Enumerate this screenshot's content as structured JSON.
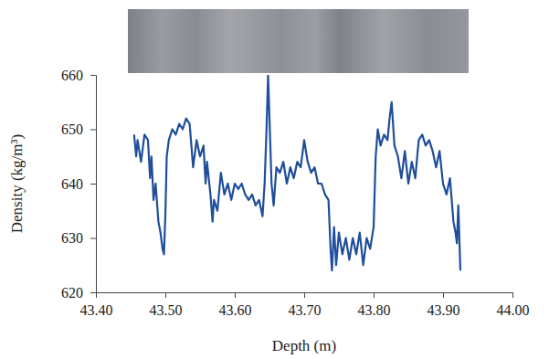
{
  "chart_data": {
    "type": "line",
    "xlabel": "Depth (m)",
    "ylabel": "Density (kg/m³)",
    "color": "#1f4e9a",
    "xlim": [
      43.4,
      44.0
    ],
    "xticks": [
      {
        "value": 43.4,
        "label": "43.40"
      },
      {
        "value": 43.5,
        "label": "43.50"
      },
      {
        "value": 43.6,
        "label": "43.60"
      },
      {
        "value": 43.7,
        "label": "43.70"
      },
      {
        "value": 43.8,
        "label": "43.80"
      },
      {
        "value": 43.9,
        "label": "43.90"
      },
      {
        "value": 44.0,
        "label": "44.00"
      }
    ],
    "ylim": [
      620,
      660
    ],
    "yticks": [
      620,
      630,
      640,
      650,
      660
    ],
    "x": [
      43.455,
      43.458,
      43.46,
      43.465,
      43.47,
      43.475,
      43.478,
      43.48,
      43.483,
      43.486,
      43.49,
      43.493,
      43.496,
      43.498,
      43.5,
      43.502,
      43.505,
      43.51,
      43.515,
      43.52,
      43.525,
      43.53,
      43.535,
      43.54,
      43.545,
      43.55,
      43.555,
      43.558,
      43.56,
      43.565,
      43.568,
      43.57,
      43.575,
      43.58,
      43.585,
      43.59,
      43.595,
      43.6,
      43.605,
      43.61,
      43.615,
      43.62,
      43.625,
      43.63,
      43.635,
      43.64,
      43.643,
      43.646,
      43.648,
      43.65,
      43.653,
      43.656,
      43.66,
      43.665,
      43.67,
      43.675,
      43.68,
      43.685,
      43.69,
      43.695,
      43.7,
      43.705,
      43.71,
      43.715,
      43.72,
      43.725,
      43.73,
      43.735,
      43.738,
      43.74,
      43.743,
      43.746,
      43.75,
      43.755,
      43.76,
      43.765,
      43.77,
      43.775,
      43.78,
      43.785,
      43.79,
      43.795,
      43.8,
      43.803,
      43.806,
      43.81,
      43.815,
      43.82,
      43.823,
      43.826,
      43.83,
      43.835,
      43.84,
      43.845,
      43.85,
      43.855,
      43.86,
      43.865,
      43.87,
      43.875,
      43.88,
      43.885,
      43.89,
      43.895,
      43.9,
      43.905,
      43.91,
      43.915,
      43.918,
      43.92,
      43.922,
      43.925
    ],
    "values": [
      649,
      645,
      648,
      644,
      649,
      648,
      641,
      645,
      637,
      640,
      633,
      631,
      628,
      627,
      634,
      645,
      648,
      650,
      649,
      651,
      650,
      652,
      651,
      643,
      648,
      645,
      647,
      640,
      644,
      638,
      633,
      637,
      635,
      642,
      638,
      640,
      637,
      640,
      639,
      640,
      638,
      637,
      638,
      636,
      637,
      634,
      640,
      651,
      660,
      652,
      640,
      636,
      643,
      642,
      644,
      640,
      643,
      641,
      644,
      643,
      648,
      644,
      642,
      643,
      640,
      640,
      638,
      637,
      628,
      624,
      632,
      625,
      631,
      627,
      630,
      626,
      630,
      627,
      631,
      625,
      630,
      628,
      632,
      645,
      650,
      647,
      649,
      648,
      652,
      655,
      647,
      645,
      641,
      646,
      640,
      644,
      641,
      648,
      649,
      647,
      648,
      646,
      643,
      646,
      640,
      638,
      641,
      633,
      631,
      629,
      636,
      624
    ]
  }
}
